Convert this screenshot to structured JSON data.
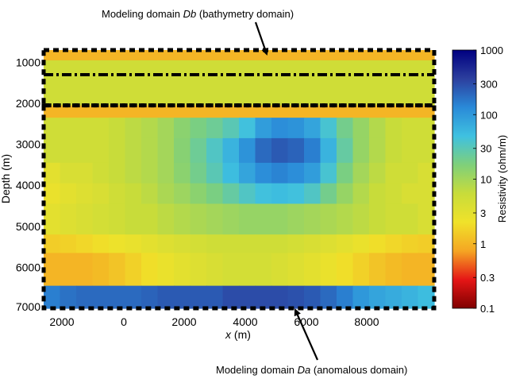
{
  "chart_data": {
    "type": "heatmap",
    "title": "",
    "xlabel_var": "x",
    "xlabel_unit": " (m)",
    "ylabel": "Depth (m)",
    "colorbar_label": "Resistivity (ohm/m)",
    "x_ticks": [
      "2000",
      "0",
      "2000",
      "4000",
      "6000",
      "8000"
    ],
    "y_ticks": [
      "1000",
      "2000",
      "3000",
      "4000",
      "5000",
      "6000",
      "7000"
    ],
    "colorbar_ticks": [
      "1000",
      "300",
      "100",
      "30",
      "10",
      "3",
      "1",
      "0.3",
      "0.1"
    ],
    "colorbar_scale": "log",
    "colorbar_range": [
      0.1,
      1000
    ],
    "y_range": [
      700,
      7000
    ],
    "colormap": [
      "#7f0000",
      "#e51616",
      "#f5a623",
      "#f0e22a",
      "#c8dc3a",
      "#7fd07a",
      "#3fc1e0",
      "#2a8ad8",
      "#2c3f9e",
      "#000080"
    ],
    "rows": [
      {
        "depth": [
          700,
          950
        ],
        "values": [
          1,
          1,
          1,
          1,
          1,
          1,
          1,
          1,
          1,
          1,
          1,
          1,
          1,
          1,
          1,
          1,
          1,
          1,
          1,
          1,
          1,
          1,
          1,
          1
        ]
      },
      {
        "depth": [
          950,
          2050
        ],
        "values": [
          5,
          5,
          5,
          5,
          5,
          5,
          5,
          5,
          5,
          5,
          5,
          5,
          5,
          5,
          5,
          5,
          5,
          5,
          5,
          5,
          5,
          5,
          5,
          5
        ]
      },
      {
        "depth": [
          2050,
          2350
        ],
        "values": [
          1,
          1,
          1,
          1,
          1,
          1,
          1,
          1,
          1,
          1,
          1,
          1,
          1,
          1,
          1,
          1,
          1,
          1,
          1,
          1,
          1,
          1,
          1,
          1
        ]
      },
      {
        "depth": [
          2350,
          2850
        ],
        "values": [
          5,
          5,
          5,
          5,
          6,
          7,
          8,
          10,
          14,
          18,
          22,
          30,
          45,
          90,
          120,
          110,
          80,
          40,
          20,
          12,
          8,
          6,
          5,
          5
        ]
      },
      {
        "depth": [
          2850,
          3450
        ],
        "values": [
          5,
          5,
          5,
          5,
          6,
          7,
          8,
          10,
          15,
          22,
          35,
          60,
          110,
          200,
          250,
          220,
          150,
          60,
          25,
          12,
          8,
          6,
          5,
          5
        ]
      },
      {
        "depth": [
          3450,
          3950
        ],
        "values": [
          3,
          4,
          4,
          5,
          6,
          7,
          8,
          10,
          14,
          20,
          30,
          50,
          80,
          120,
          140,
          120,
          90,
          40,
          18,
          10,
          7,
          5,
          5,
          4
        ]
      },
      {
        "depth": [
          3950,
          4450
        ],
        "values": [
          2.5,
          3,
          3.5,
          4,
          5,
          6,
          7,
          9,
          11,
          14,
          18,
          25,
          35,
          45,
          50,
          45,
          35,
          20,
          12,
          8,
          6,
          5,
          4,
          4
        ]
      },
      {
        "depth": [
          4450,
          5200
        ],
        "values": [
          3,
          3.5,
          4,
          4.5,
          5,
          6,
          6,
          7,
          8,
          9,
          10,
          11,
          12,
          12,
          12,
          11,
          10,
          9,
          8,
          7,
          6,
          5,
          5,
          4
        ]
      },
      {
        "depth": [
          5200,
          5650
        ],
        "values": [
          1.5,
          1.6,
          1.8,
          2,
          2.3,
          2.6,
          3,
          3.5,
          4,
          4.5,
          5,
          5,
          5,
          5,
          5,
          4.5,
          4,
          3.5,
          3,
          2.5,
          2,
          1.8,
          1.6,
          1.5
        ]
      },
      {
        "depth": [
          5650,
          6450
        ],
        "values": [
          1,
          1,
          1,
          1.1,
          1.3,
          1.6,
          2,
          2.5,
          3,
          3.5,
          4,
          4.5,
          4.5,
          4.5,
          4,
          3.5,
          3,
          2.5,
          2,
          1.6,
          1.3,
          1.1,
          1,
          1
        ]
      },
      {
        "depth": [
          6450,
          7000
        ],
        "values": [
          150,
          180,
          200,
          200,
          200,
          200,
          220,
          250,
          250,
          250,
          250,
          300,
          300,
          300,
          300,
          280,
          250,
          200,
          150,
          100,
          80,
          70,
          60,
          50
        ]
      }
    ],
    "domain_boxes": [
      {
        "name": "Db",
        "depth": [
          700,
          2050
        ]
      },
      {
        "name": "Da",
        "depth": [
          2050,
          7000
        ]
      }
    ],
    "internal_line_depth": 1300
  },
  "annotations": {
    "top": {
      "prefix": "Modeling domain ",
      "var": "Db",
      "suffix": " (bathymetry domain)"
    },
    "bottom": {
      "prefix": "Modeling domain ",
      "var": "Da",
      "suffix": " (anomalous domain)"
    }
  }
}
